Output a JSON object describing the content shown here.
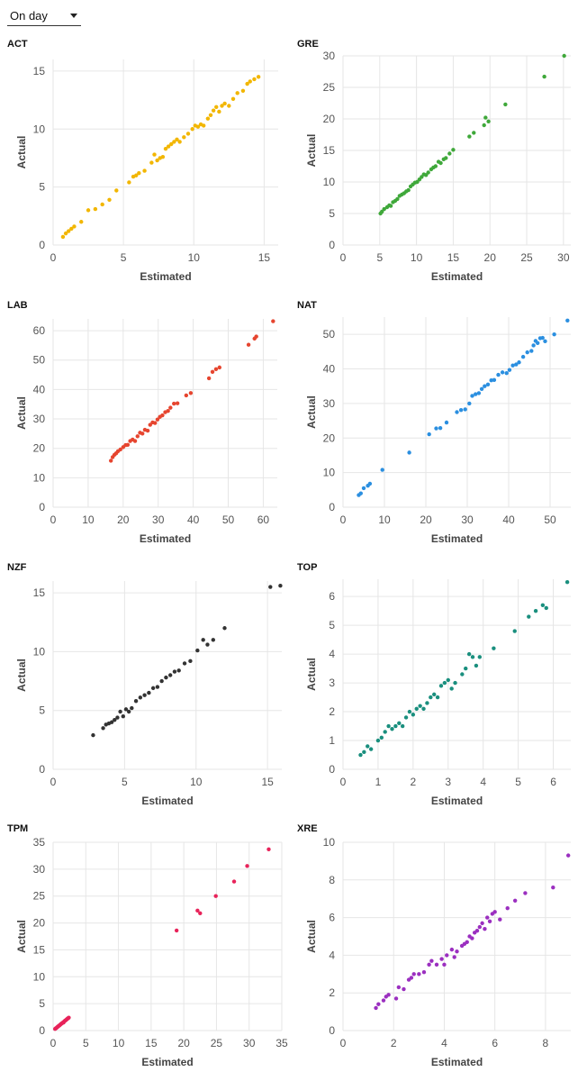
{
  "controls": {
    "dropdown_value": "On day"
  },
  "chart_data": [
    {
      "type": "scatter",
      "title": "ACT",
      "xlabel": "Estimated",
      "ylabel": "Actual",
      "xlim": [
        0,
        16
      ],
      "ylim": [
        0,
        16
      ],
      "xticks": [
        0,
        5,
        10,
        15
      ],
      "yticks": [
        0,
        5,
        10,
        15
      ],
      "xtick_labels": [
        "0",
        "5",
        "10",
        "15"
      ],
      "ytick_labels": [
        "0",
        "5",
        "10",
        "15"
      ],
      "color": "#f2b600",
      "x": [
        0.7,
        0.9,
        1.1,
        1.3,
        1.5,
        2.0,
        2.5,
        3.0,
        3.5,
        4.0,
        4.5,
        5.4,
        5.7,
        5.9,
        6.1,
        6.5,
        7.0,
        7.2,
        7.4,
        7.6,
        7.8,
        8.0,
        8.2,
        8.4,
        8.6,
        8.8,
        9.0,
        9.3,
        9.6,
        9.9,
        10.1,
        10.3,
        10.5,
        10.7,
        11.0,
        11.2,
        11.4,
        11.6,
        11.8,
        12.0,
        12.2,
        12.5,
        12.8,
        13.1,
        13.5,
        13.8,
        14.0,
        14.3,
        14.6
      ],
      "y": [
        0.7,
        1.0,
        1.2,
        1.4,
        1.6,
        2.0,
        3.0,
        3.1,
        3.5,
        3.9,
        4.7,
        5.4,
        5.9,
        6.0,
        6.2,
        6.4,
        7.1,
        7.8,
        7.3,
        7.5,
        7.6,
        8.3,
        8.5,
        8.7,
        8.9,
        9.1,
        8.9,
        9.3,
        9.6,
        10.0,
        10.3,
        10.2,
        10.4,
        10.3,
        10.9,
        11.2,
        11.6,
        11.9,
        11.5,
        12.0,
        12.2,
        12.0,
        12.6,
        13.1,
        13.3,
        13.9,
        14.1,
        14.3,
        14.5
      ]
    },
    {
      "type": "scatter",
      "title": "GRE",
      "xlabel": "Estimated",
      "ylabel": "Actual",
      "xlim": [
        0,
        31
      ],
      "ylim": [
        0,
        30
      ],
      "xticks": [
        0,
        5,
        10,
        15,
        20,
        25,
        30
      ],
      "yticks": [
        0,
        5,
        10,
        15,
        20,
        25,
        30
      ],
      "xtick_labels": [
        "0",
        "5",
        "10",
        "15",
        "20",
        "25",
        "30"
      ],
      "ytick_labels": [
        "0",
        "5",
        "10",
        "15",
        "20",
        "25",
        "30"
      ],
      "color": "#3fa83a",
      "x": [
        5.1,
        5.3,
        5.6,
        6.0,
        6.3,
        6.5,
        6.8,
        7.1,
        7.4,
        7.7,
        8.0,
        8.3,
        8.6,
        8.9,
        9.2,
        9.5,
        9.8,
        10.1,
        10.4,
        10.7,
        11.0,
        11.3,
        11.6,
        12.0,
        12.3,
        12.6,
        13.0,
        13.3,
        13.7,
        14.0,
        14.5,
        15.0,
        17.2,
        17.8,
        19.2,
        19.4,
        19.8,
        22.1,
        27.4,
        30.1
      ],
      "y": [
        5.0,
        5.3,
        5.7,
        6.0,
        6.3,
        6.2,
        6.8,
        7.0,
        7.3,
        7.8,
        8.0,
        8.2,
        8.5,
        8.7,
        9.3,
        9.6,
        9.9,
        10.0,
        10.4,
        10.8,
        11.2,
        11.1,
        11.5,
        12.0,
        12.3,
        12.5,
        13.2,
        13.0,
        13.6,
        13.8,
        14.5,
        15.1,
        17.2,
        17.8,
        19.0,
        20.2,
        19.6,
        22.3,
        26.7,
        30.0
      ]
    },
    {
      "type": "scatter",
      "title": "LAB",
      "xlabel": "Estimated",
      "ylabel": "Actual",
      "xlim": [
        0,
        64
      ],
      "ylim": [
        0,
        64
      ],
      "xticks": [
        0,
        10,
        20,
        30,
        40,
        50,
        60
      ],
      "yticks": [
        0,
        10,
        20,
        30,
        40,
        50,
        60
      ],
      "xtick_labels": [
        "0",
        "10",
        "20",
        "30",
        "40",
        "50",
        "60"
      ],
      "ytick_labels": [
        "0",
        "10",
        "20",
        "30",
        "40",
        "50",
        "60"
      ],
      "color": "#e6452f",
      "x": [
        16.5,
        17.0,
        17.5,
        18.0,
        18.5,
        19.2,
        20.0,
        20.7,
        21.3,
        22.0,
        22.7,
        23.4,
        24.1,
        24.8,
        25.5,
        26.2,
        27.0,
        27.7,
        28.4,
        29.1,
        29.8,
        30.5,
        31.2,
        32.0,
        32.8,
        33.5,
        34.5,
        35.5,
        38.0,
        39.3,
        44.5,
        45.5,
        46.5,
        47.5,
        55.8,
        57.5,
        58.0,
        62.8
      ],
      "y": [
        15.8,
        17.0,
        17.8,
        18.3,
        19.0,
        19.6,
        20.4,
        21.1,
        21.2,
        22.5,
        23.0,
        22.5,
        24.1,
        25.3,
        25.0,
        26.3,
        26.0,
        28.0,
        28.8,
        28.6,
        29.8,
        30.7,
        31.2,
        32.3,
        32.7,
        33.8,
        35.2,
        35.3,
        38.0,
        38.8,
        43.8,
        46.0,
        46.9,
        47.5,
        55.2,
        57.3,
        58.0,
        63.2
      ]
    },
    {
      "type": "scatter",
      "title": "NAT",
      "xlabel": "Estimated",
      "ylabel": "Actual",
      "xlim": [
        0,
        55
      ],
      "ylim": [
        0,
        55
      ],
      "xticks": [
        0,
        10,
        20,
        30,
        40,
        50
      ],
      "yticks": [
        0,
        10,
        20,
        30,
        40,
        50
      ],
      "xtick_labels": [
        "0",
        "10",
        "20",
        "30",
        "40",
        "50"
      ],
      "ytick_labels": [
        "0",
        "10",
        "20",
        "30",
        "40",
        "50"
      ],
      "color": "#2b8fe0",
      "x": [
        3.8,
        4.3,
        5.0,
        6.0,
        6.5,
        9.5,
        16.0,
        20.8,
        22.5,
        23.5,
        25.0,
        27.5,
        28.5,
        29.5,
        30.5,
        31.2,
        32.0,
        32.8,
        33.5,
        34.2,
        35.0,
        35.8,
        36.5,
        37.5,
        38.5,
        39.5,
        40.2,
        41.0,
        41.8,
        42.5,
        43.5,
        44.5,
        45.5,
        46.0,
        46.5,
        47.0,
        47.6,
        48.2,
        48.8,
        51.0,
        54.2
      ],
      "y": [
        3.5,
        4.0,
        5.5,
        6.2,
        6.8,
        10.8,
        15.8,
        21.1,
        22.8,
        22.9,
        24.5,
        27.5,
        28.1,
        28.3,
        30.0,
        32.2,
        32.7,
        33.0,
        34.2,
        35.0,
        35.5,
        36.7,
        36.8,
        38.3,
        39.0,
        38.8,
        39.7,
        41.0,
        41.3,
        41.9,
        43.5,
        44.8,
        45.2,
        46.8,
        48.1,
        47.5,
        48.9,
        49.0,
        48.0,
        50.0,
        54.0
      ]
    },
    {
      "type": "scatter",
      "title": "NZF",
      "xlabel": "Estimated",
      "ylabel": "Actual",
      "xlim": [
        0,
        16
      ],
      "ylim": [
        0,
        16
      ],
      "xticks": [
        0,
        5,
        10,
        15
      ],
      "yticks": [
        0,
        5,
        10,
        15
      ],
      "xtick_labels": [
        "0",
        "5",
        "10",
        "15"
      ],
      "ytick_labels": [
        "0",
        "5",
        "10",
        "15"
      ],
      "color": "#333333",
      "x": [
        2.8,
        3.5,
        3.7,
        3.9,
        4.1,
        4.3,
        4.5,
        4.7,
        4.9,
        5.1,
        5.3,
        5.5,
        5.8,
        6.1,
        6.4,
        6.7,
        7.0,
        7.3,
        7.6,
        7.9,
        8.2,
        8.5,
        8.8,
        9.2,
        9.6,
        10.1,
        10.5,
        10.8,
        11.2,
        12.0,
        15.2,
        15.9
      ],
      "y": [
        2.9,
        3.5,
        3.8,
        3.9,
        4.0,
        4.2,
        4.4,
        4.9,
        4.5,
        5.1,
        4.9,
        5.2,
        5.8,
        6.1,
        6.3,
        6.5,
        6.9,
        7.0,
        7.5,
        7.8,
        8.0,
        8.3,
        8.4,
        9.0,
        9.2,
        10.1,
        11.0,
        10.6,
        11.0,
        12.0,
        15.5,
        15.6
      ]
    },
    {
      "type": "scatter",
      "title": "TOP",
      "xlabel": "Estimated",
      "ylabel": "Actual",
      "xlim": [
        0,
        6.5
      ],
      "ylim": [
        0,
        6.6
      ],
      "xticks": [
        0,
        1,
        2,
        3,
        4,
        5,
        6
      ],
      "yticks": [
        0,
        1,
        2,
        3,
        4,
        5,
        6
      ],
      "xtick_labels": [
        "0",
        "1",
        "2",
        "3",
        "4",
        "5",
        "6"
      ],
      "ytick_labels": [
        "0",
        "1",
        "2",
        "3",
        "4",
        "5",
        "6"
      ],
      "color": "#1a8f7e",
      "x": [
        0.5,
        0.6,
        0.7,
        0.8,
        1.0,
        1.1,
        1.2,
        1.3,
        1.4,
        1.5,
        1.6,
        1.7,
        1.8,
        1.9,
        2.0,
        2.1,
        2.2,
        2.3,
        2.4,
        2.5,
        2.6,
        2.7,
        2.8,
        2.9,
        3.0,
        3.1,
        3.2,
        3.4,
        3.5,
        3.6,
        3.7,
        3.8,
        3.9,
        4.3,
        4.9,
        5.3,
        5.5,
        5.7,
        5.8,
        6.4
      ],
      "y": [
        0.5,
        0.6,
        0.8,
        0.7,
        1.0,
        1.1,
        1.3,
        1.5,
        1.4,
        1.5,
        1.6,
        1.5,
        1.8,
        2.0,
        1.9,
        2.1,
        2.2,
        2.1,
        2.3,
        2.5,
        2.6,
        2.5,
        2.9,
        3.0,
        3.1,
        2.8,
        3.0,
        3.3,
        3.5,
        4.0,
        3.9,
        3.6,
        3.9,
        4.2,
        4.8,
        5.3,
        5.5,
        5.7,
        5.6,
        6.5
      ]
    },
    {
      "type": "scatter",
      "title": "TPM",
      "xlabel": "Estimated",
      "ylabel": "Actual",
      "xlim": [
        0,
        35
      ],
      "ylim": [
        0,
        35
      ],
      "xticks": [
        0,
        5,
        10,
        15,
        20,
        25,
        30,
        35
      ],
      "yticks": [
        0,
        5,
        10,
        15,
        20,
        25,
        30,
        35
      ],
      "xtick_labels": [
        "0",
        "5",
        "10",
        "15",
        "20",
        "25",
        "30",
        "35"
      ],
      "ytick_labels": [
        "0",
        "5",
        "10",
        "15",
        "20",
        "25",
        "30",
        "35"
      ],
      "color": "#e8235a",
      "x": [
        0.3,
        0.4,
        0.5,
        0.6,
        0.7,
        0.8,
        0.9,
        1.0,
        1.1,
        1.2,
        1.3,
        1.4,
        1.5,
        1.6,
        1.7,
        1.8,
        1.9,
        2.0,
        2.1,
        2.2,
        2.3,
        2.4,
        18.9,
        22.1,
        22.5,
        24.9,
        27.7,
        29.7,
        33.0
      ],
      "y": [
        0.3,
        0.4,
        0.5,
        0.6,
        0.7,
        0.8,
        0.9,
        1.0,
        1.1,
        1.2,
        1.3,
        1.4,
        1.5,
        1.5,
        1.7,
        1.8,
        1.9,
        2.0,
        2.1,
        2.2,
        2.3,
        2.4,
        18.6,
        22.3,
        21.8,
        25.0,
        27.7,
        30.6,
        33.7
      ]
    },
    {
      "type": "scatter",
      "title": "XRE",
      "xlabel": "Estimated",
      "ylabel": "Actual",
      "xlim": [
        0,
        9
      ],
      "ylim": [
        0,
        10
      ],
      "xticks": [
        0,
        2,
        4,
        6,
        8
      ],
      "yticks": [
        0,
        2,
        4,
        6,
        8,
        10
      ],
      "xtick_labels": [
        "0",
        "2",
        "4",
        "6",
        "8"
      ],
      "ytick_labels": [
        "0",
        "2",
        "4",
        "6",
        "8",
        "10"
      ],
      "color": "#9b2fc0",
      "x": [
        1.3,
        1.4,
        1.6,
        1.7,
        1.8,
        2.1,
        2.2,
        2.4,
        2.6,
        2.7,
        2.8,
        3.0,
        3.2,
        3.4,
        3.5,
        3.7,
        3.9,
        4.0,
        4.1,
        4.3,
        4.4,
        4.5,
        4.7,
        4.8,
        4.9,
        5.0,
        5.1,
        5.2,
        5.3,
        5.4,
        5.5,
        5.6,
        5.7,
        5.8,
        5.9,
        6.0,
        6.2,
        6.5,
        6.8,
        7.2,
        8.3,
        8.9
      ],
      "y": [
        1.2,
        1.4,
        1.6,
        1.8,
        1.9,
        1.7,
        2.3,
        2.2,
        2.7,
        2.8,
        3.0,
        3.0,
        3.1,
        3.5,
        3.7,
        3.5,
        3.8,
        3.5,
        4.0,
        4.3,
        3.9,
        4.2,
        4.5,
        4.6,
        4.7,
        5.0,
        4.9,
        5.2,
        5.3,
        5.5,
        5.7,
        5.4,
        6.0,
        5.8,
        6.2,
        6.3,
        5.9,
        6.5,
        6.9,
        7.3,
        7.6,
        9.3
      ]
    }
  ]
}
